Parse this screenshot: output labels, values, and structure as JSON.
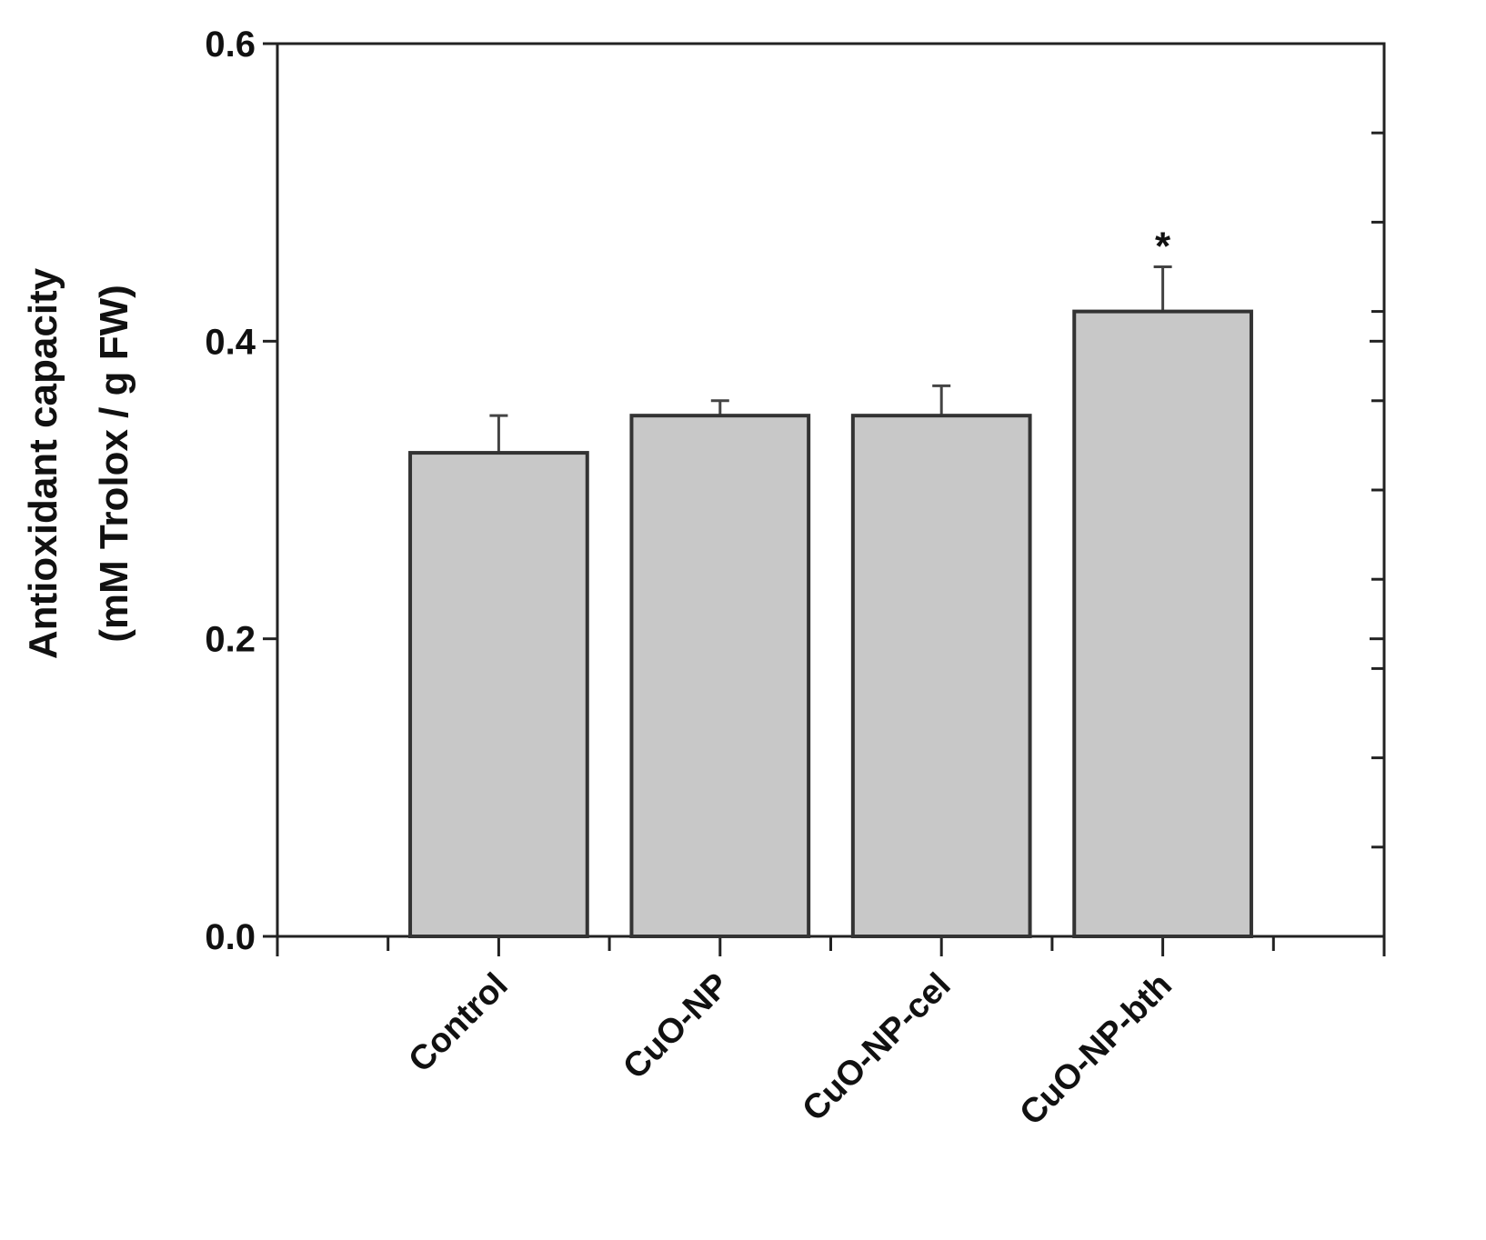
{
  "chart_data": {
    "type": "bar",
    "ylabel": [
      "Antioxidant capacity",
      "(mM Trolox / g FW)"
    ],
    "categories": [
      "Control",
      "CuO-NP",
      "CuO-NP-cel",
      "CuO-NP-bth"
    ],
    "values": [
      0.325,
      0.35,
      0.35,
      0.42
    ],
    "errors": [
      0.025,
      0.01,
      0.02,
      0.03
    ],
    "annotations": [
      null,
      null,
      null,
      "*"
    ],
    "color": "#c8c8c8",
    "ylim": [
      0,
      0.6
    ],
    "yticks": [
      {
        "value": 0,
        "label": "0.0"
      },
      0.2,
      0.4,
      0.6
    ]
  }
}
